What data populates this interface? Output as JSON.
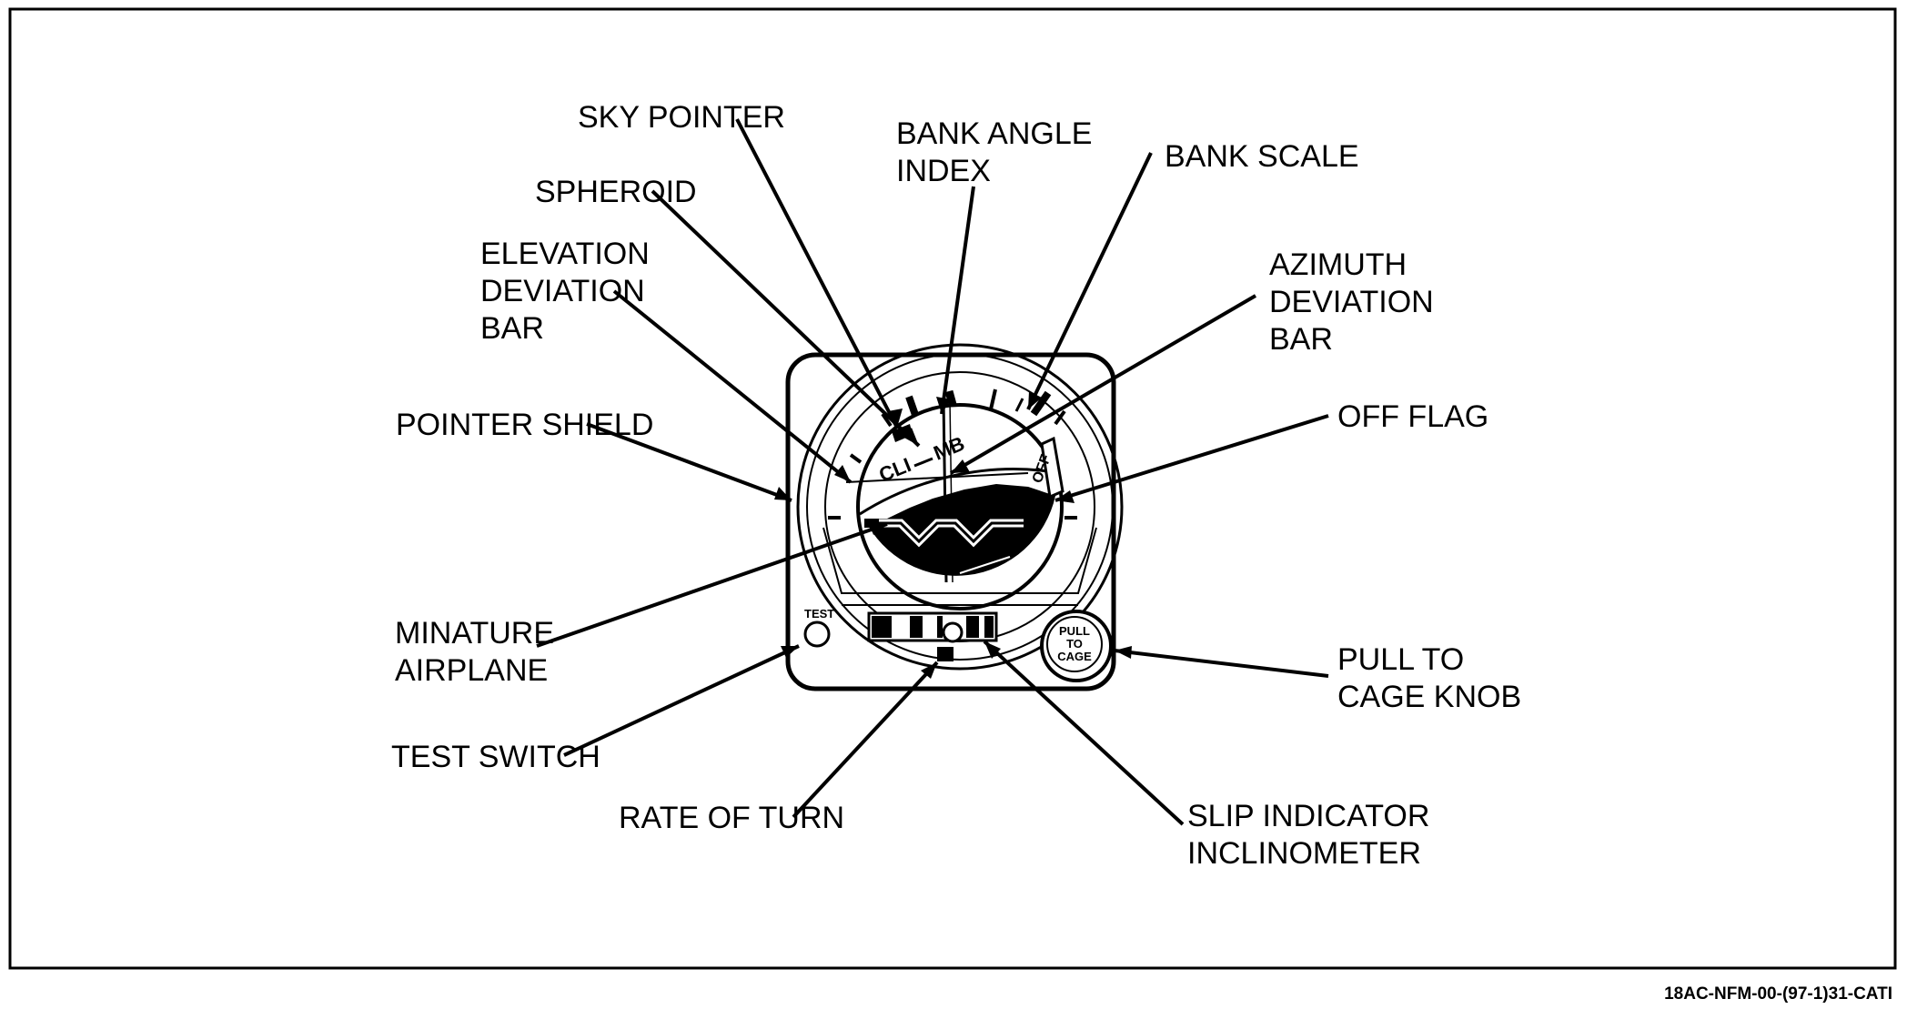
{
  "labels": {
    "sky_pointer": "SKY POINTER",
    "bank_angle_index": [
      "BANK ANGLE",
      "INDEX"
    ],
    "bank_scale": "BANK SCALE",
    "spheroid": "SPHEROID",
    "elevation_deviation_bar": [
      "ELEVATION",
      "DEVIATION",
      "BAR"
    ],
    "azimuth_deviation_bar": [
      "AZIMUTH",
      "DEVIATION",
      "BAR"
    ],
    "pointer_shield": "POINTER SHIELD",
    "off_flag": "OFF FLAG",
    "minature_airplane": [
      "MINATURE",
      "AIRPLANE"
    ],
    "pull_to_cage_knob": [
      "PULL TO",
      "CAGE KNOB"
    ],
    "test_switch": "TEST SWITCH",
    "rate_of_turn": "RATE OF TURN",
    "slip_indicator": [
      "SLIP INDICATOR",
      "INCLINOMETER"
    ]
  },
  "instrument": {
    "climb_text": "CLI",
    "climb_text_2": "MB",
    "off_text": "OFF",
    "test_label": "TEST",
    "knob_lines": [
      "PULL",
      "TO",
      "CAGE"
    ]
  },
  "reference": "18AC-NFM-00-(97-1)31-CATI"
}
